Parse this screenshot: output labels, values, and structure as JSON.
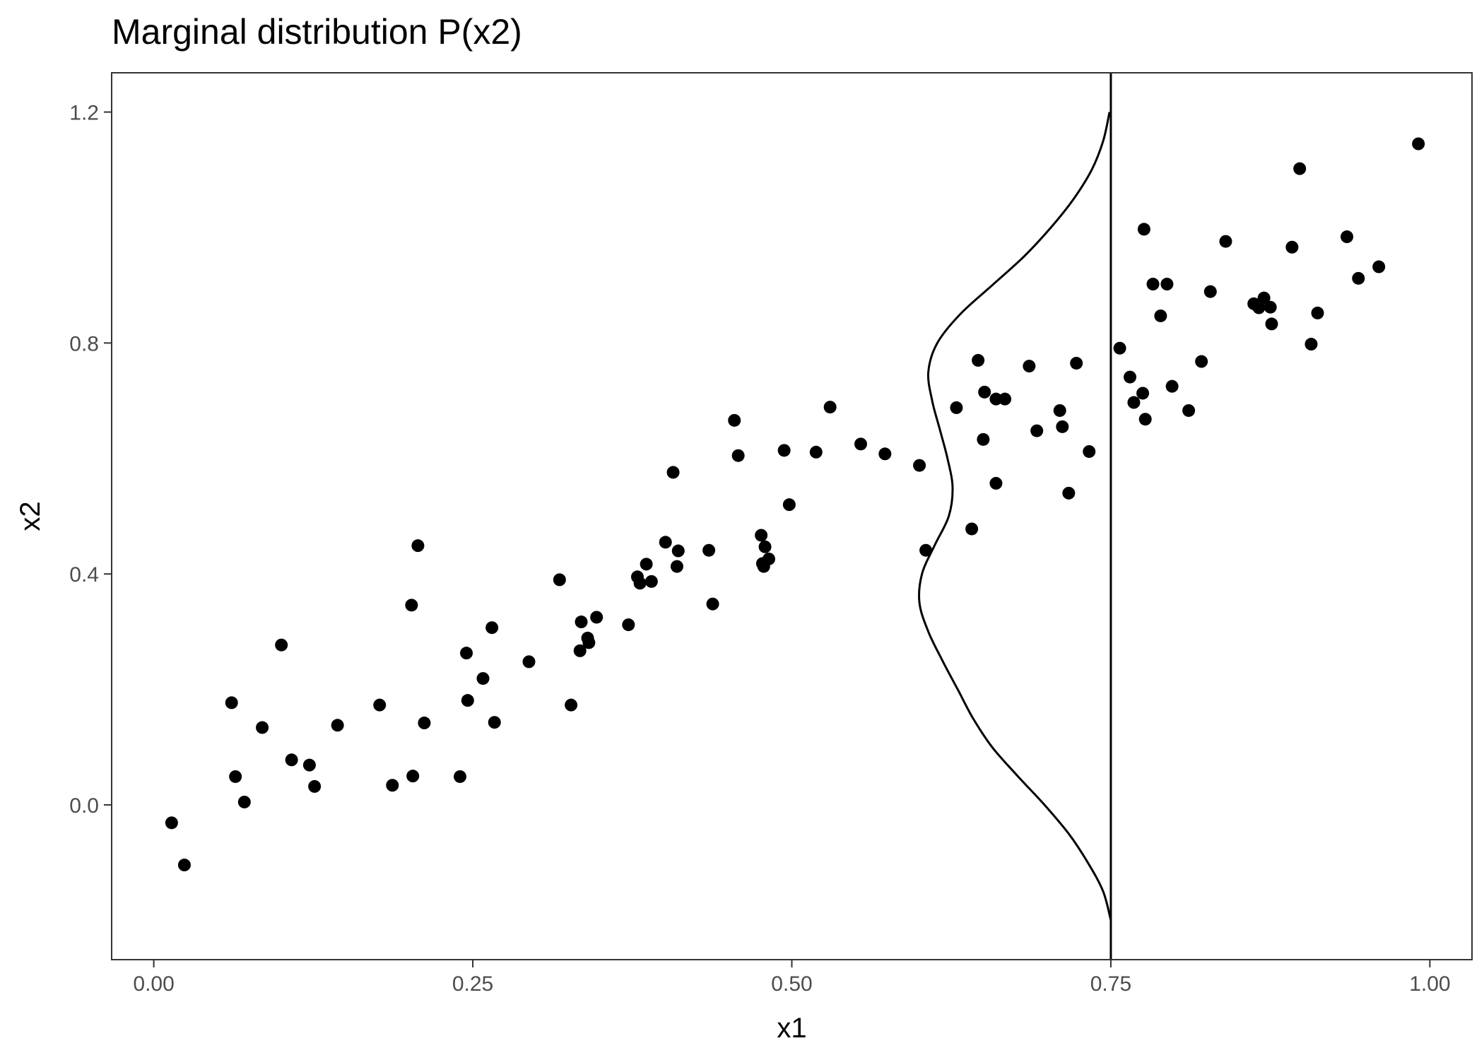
{
  "chart_data": {
    "type": "scatter",
    "title": "Marginal distribution P(x2)",
    "xlabel": "x1",
    "ylabel": "x2",
    "xlim": [
      -0.033,
      1.033
    ],
    "ylim": [
      -0.268,
      1.268
    ],
    "grid": false,
    "x_ticks": [
      {
        "value": 0.0,
        "label": "0.00"
      },
      {
        "value": 0.25,
        "label": "0.25"
      },
      {
        "value": 0.5,
        "label": "0.50"
      },
      {
        "value": 0.75,
        "label": "0.75"
      },
      {
        "value": 1.0,
        "label": "1.00"
      }
    ],
    "y_ticks": [
      {
        "value": 0.0,
        "label": "0.0"
      },
      {
        "value": 0.4,
        "label": "0.4"
      },
      {
        "value": 0.8,
        "label": "0.8"
      },
      {
        "value": 1.2,
        "label": "1.2"
      }
    ],
    "points": [
      [
        0.014,
        -0.031
      ],
      [
        0.024,
        -0.104
      ],
      [
        0.061,
        0.177
      ],
      [
        0.064,
        0.049
      ],
      [
        0.071,
        0.005
      ],
      [
        0.085,
        0.134
      ],
      [
        0.1,
        0.277
      ],
      [
        0.108,
        0.078
      ],
      [
        0.122,
        0.069
      ],
      [
        0.126,
        0.032
      ],
      [
        0.144,
        0.138
      ],
      [
        0.177,
        0.173
      ],
      [
        0.187,
        0.034
      ],
      [
        0.202,
        0.346
      ],
      [
        0.203,
        0.05
      ],
      [
        0.207,
        0.449
      ],
      [
        0.212,
        0.142
      ],
      [
        0.24,
        0.049
      ],
      [
        0.245,
        0.263
      ],
      [
        0.246,
        0.181
      ],
      [
        0.258,
        0.219
      ],
      [
        0.265,
        0.307
      ],
      [
        0.267,
        0.143
      ],
      [
        0.294,
        0.248
      ],
      [
        0.318,
        0.39
      ],
      [
        0.327,
        0.173
      ],
      [
        0.334,
        0.267
      ],
      [
        0.335,
        0.317
      ],
      [
        0.34,
        0.289
      ],
      [
        0.341,
        0.281
      ],
      [
        0.347,
        0.325
      ],
      [
        0.372,
        0.312
      ],
      [
        0.379,
        0.395
      ],
      [
        0.381,
        0.384
      ],
      [
        0.386,
        0.417
      ],
      [
        0.39,
        0.387
      ],
      [
        0.401,
        0.455
      ],
      [
        0.407,
        0.576
      ],
      [
        0.41,
        0.413
      ],
      [
        0.411,
        0.44
      ],
      [
        0.435,
        0.441
      ],
      [
        0.438,
        0.348
      ],
      [
        0.455,
        0.666
      ],
      [
        0.458,
        0.605
      ],
      [
        0.476,
        0.467
      ],
      [
        0.477,
        0.418
      ],
      [
        0.478,
        0.413
      ],
      [
        0.479,
        0.447
      ],
      [
        0.482,
        0.426
      ],
      [
        0.494,
        0.614
      ],
      [
        0.498,
        0.52
      ],
      [
        0.519,
        0.611
      ],
      [
        0.53,
        0.689
      ],
      [
        0.554,
        0.625
      ],
      [
        0.573,
        0.608
      ],
      [
        0.6,
        0.588
      ],
      [
        0.605,
        0.441
      ],
      [
        0.629,
        0.688
      ],
      [
        0.641,
        0.478
      ],
      [
        0.646,
        0.77
      ],
      [
        0.65,
        0.633
      ],
      [
        0.651,
        0.715
      ],
      [
        0.66,
        0.557
      ],
      [
        0.66,
        0.703
      ],
      [
        0.667,
        0.703
      ],
      [
        0.686,
        0.76
      ],
      [
        0.692,
        0.648
      ],
      [
        0.71,
        0.683
      ],
      [
        0.712,
        0.655
      ],
      [
        0.717,
        0.54
      ],
      [
        0.723,
        0.765
      ],
      [
        0.733,
        0.612
      ],
      [
        0.757,
        0.791
      ],
      [
        0.765,
        0.741
      ],
      [
        0.768,
        0.697
      ],
      [
        0.775,
        0.713
      ],
      [
        0.776,
        0.997
      ],
      [
        0.777,
        0.668
      ],
      [
        0.783,
        0.902
      ],
      [
        0.789,
        0.847
      ],
      [
        0.794,
        0.902
      ],
      [
        0.798,
        0.725
      ],
      [
        0.811,
        0.683
      ],
      [
        0.821,
        0.768
      ],
      [
        0.828,
        0.889
      ],
      [
        0.84,
        0.976
      ],
      [
        0.862,
        0.868
      ],
      [
        0.866,
        0.861
      ],
      [
        0.87,
        0.878
      ],
      [
        0.875,
        0.862
      ],
      [
        0.876,
        0.833
      ],
      [
        0.892,
        0.966
      ],
      [
        0.898,
        1.102
      ],
      [
        0.907,
        0.798
      ],
      [
        0.912,
        0.852
      ],
      [
        0.935,
        0.984
      ],
      [
        0.944,
        0.912
      ],
      [
        0.96,
        0.932
      ],
      [
        0.991,
        1.145
      ]
    ],
    "marginal_line": {
      "x": 0.75
    },
    "marginal_density": {
      "x2": [
        -0.2,
        -0.15,
        -0.1,
        -0.05,
        0.0,
        0.05,
        0.1,
        0.15,
        0.2,
        0.25,
        0.3,
        0.35,
        0.4,
        0.45,
        0.5,
        0.55,
        0.6,
        0.65,
        0.7,
        0.75,
        0.8,
        0.85,
        0.9,
        0.95,
        1.0,
        1.05,
        1.1,
        1.15,
        1.2
      ],
      "offset": [
        0.0,
        0.006,
        0.018,
        0.033,
        0.052,
        0.073,
        0.093,
        0.108,
        0.12,
        0.132,
        0.143,
        0.15,
        0.148,
        0.138,
        0.127,
        0.124,
        0.128,
        0.134,
        0.14,
        0.143,
        0.136,
        0.118,
        0.093,
        0.068,
        0.047,
        0.029,
        0.015,
        0.006,
        0.001
      ]
    }
  }
}
